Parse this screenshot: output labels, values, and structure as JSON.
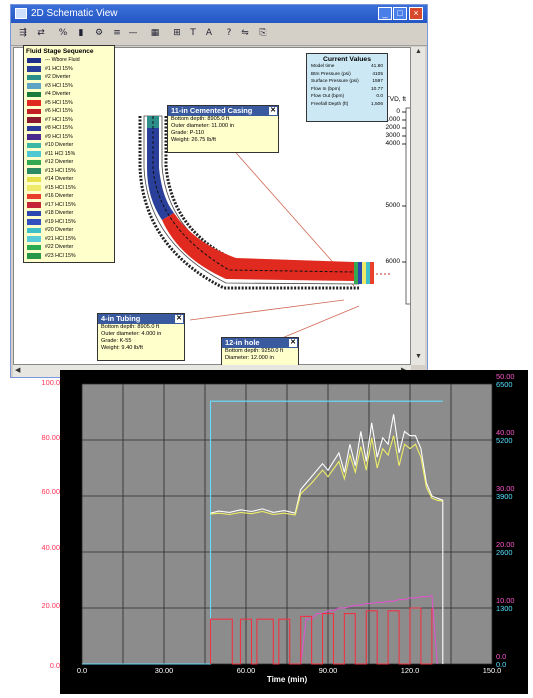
{
  "window": {
    "title": "2D Schematic View",
    "buttons": [
      "_",
      "□",
      "×"
    ]
  },
  "toolbar": {
    "tools": [
      "⇶",
      "⇄",
      "%",
      "▮",
      "⚙",
      "≡",
      "—",
      "▦",
      "⊞",
      "T",
      "A",
      "?",
      "⇋",
      "⎘"
    ]
  },
  "legend": {
    "title": "Fluid Stage Sequence",
    "items": [
      {
        "label": "--- Wbore Fluid",
        "color": "#1f2f8a"
      },
      {
        "label": "#1 HCl 15%",
        "color": "#2a3f9a"
      },
      {
        "label": "#2 Diverter",
        "color": "#2e8f8a"
      },
      {
        "label": "#3 HCl 15%",
        "color": "#5fa4c4"
      },
      {
        "label": "#4 Diverter",
        "color": "#1b7a3c"
      },
      {
        "label": "#5 HCl 15%",
        "color": "#e12a1f"
      },
      {
        "label": "#6 HCl 15%",
        "color": "#c31e24"
      },
      {
        "label": "#7 HCl 15%",
        "color": "#8b1a2e"
      },
      {
        "label": "#8 HCl 15%",
        "color": "#2b3c9c"
      },
      {
        "label": "#9 HCl 15%",
        "color": "#4b2a8e"
      },
      {
        "label": "#10 Diverter",
        "color": "#3ab8a4"
      },
      {
        "label": "#11 HCl 15%",
        "color": "#4fc8d4"
      },
      {
        "label": "#12 Diverter",
        "color": "#32a852"
      },
      {
        "label": "#13 HCl 15%",
        "color": "#2b8a64"
      },
      {
        "label": "#14 Diverter",
        "color": "#e8e04a"
      },
      {
        "label": "#15 HCl 15%",
        "color": "#f0ea6a"
      },
      {
        "label": "#16 Diverter",
        "color": "#e8402a"
      },
      {
        "label": "#17 HCl 15%",
        "color": "#c42838"
      },
      {
        "label": "#18 Diverter",
        "color": "#2a48b0"
      },
      {
        "label": "#19 HCl 15%",
        "color": "#3050c0"
      },
      {
        "label": "#20 Diverter",
        "color": "#3fc0c8"
      },
      {
        "label": "#21 HCl 15%",
        "color": "#58ccd8"
      },
      {
        "label": "#22 Diverter",
        "color": "#2eaa4e"
      },
      {
        "label": "#23 HCl 15%",
        "color": "#289848"
      }
    ]
  },
  "current_values": {
    "title": "Current Values",
    "rows": [
      {
        "name": "Model time",
        "value": "41.80"
      },
      {
        "name": "Btm Pressure (psi)",
        "value": "4105"
      },
      {
        "name": "Surface Pressure (psi)",
        "value": "1597"
      },
      {
        "name": "Flow In (bpm)",
        "value": "10.77"
      },
      {
        "name": "Flow Out (bpm)",
        "value": "0.0"
      },
      {
        "name": "Freefall Depth (ft)",
        "value": "1,506"
      }
    ]
  },
  "casing_box": {
    "title": "11-in Cemented Casing",
    "rows": [
      "Bottom depth:  8905.0 ft",
      "Outer diameter:  11.000 in",
      "Grade: P-110",
      "Weight:  26.75 lb/ft"
    ]
  },
  "tubing_box": {
    "title": "4-in Tubing",
    "rows": [
      "Bottom depth:  8905.0 ft",
      "Outer diameter:  4.000 in",
      "Grade: K-55",
      "Weight:  9.40 lb/ft"
    ]
  },
  "hole_box": {
    "title": "12-in hole",
    "rows": [
      "Bottom depth:  9250.0 ft",
      "Diameter:  12.000 in"
    ]
  },
  "tvd": {
    "label": "TVD, ft",
    "ticks": [
      "0",
      "1000",
      "2000",
      "3000",
      "4000",
      "5000",
      "6000"
    ]
  },
  "chart_data": {
    "type": "line",
    "xlabel": "Time (min)",
    "x_ticks": [
      "0.0",
      "30.00",
      "60.00",
      "90.00",
      "120.0",
      "150.0"
    ],
    "xlim": [
      0,
      150
    ],
    "left_axis_labels": [
      {
        "top": "100.0",
        "bottom": "6500",
        "top_color": "#ff3355",
        "bottom_color": "#ffffff"
      },
      {
        "top": "5200",
        "bottom": "80.00",
        "top_color": "#ffffff",
        "bottom_color": "#ff3355"
      },
      {
        "top": "5200",
        "bottom": "",
        "top_color": "#ffffff",
        "bottom_color": "#ffffff"
      },
      {
        "top": "3900",
        "bottom": "60.00",
        "top_color": "#ffffff",
        "bottom_color": "#ff3355"
      },
      {
        "top": "3900",
        "bottom": "",
        "top_color": "#ffffff",
        "bottom_color": "#ffffff"
      },
      {
        "top": "2600",
        "bottom": "40.00",
        "top_color": "#ffffff",
        "bottom_color": "#ff3355"
      },
      {
        "top": "2600",
        "bottom": "",
        "top_color": "#ffffff",
        "bottom_color": "#ffffff"
      },
      {
        "top": "1300",
        "bottom": "20.00",
        "top_color": "#ffffff",
        "bottom_color": "#ff3355"
      },
      {
        "top": "1300",
        "bottom": "",
        "top_color": "#ffffff",
        "bottom_color": "#ffffff"
      },
      {
        "top": "0.0",
        "bottom": "0.0",
        "top_color": "#ffffff",
        "bottom_color": "#ff3355"
      }
    ],
    "right_axis_labels": [
      {
        "value": "50.00",
        "color": "#ff55cc"
      },
      {
        "value": "6500",
        "color": "#55e0ff"
      },
      {
        "value": "40.00",
        "color": "#ff55cc"
      },
      {
        "value": "5200",
        "color": "#55e0ff"
      },
      {
        "value": "30.00",
        "color": "#ff55cc"
      },
      {
        "value": "3900",
        "color": "#55e0ff"
      },
      {
        "value": "20.00",
        "color": "#ff55cc"
      },
      {
        "value": "2600",
        "color": "#55e0ff"
      },
      {
        "value": "10.00",
        "color": "#ff55cc"
      },
      {
        "value": "1300",
        "color": "#55e0ff"
      },
      {
        "value": "0.0",
        "color": "#ff55cc"
      },
      {
        "value": "0.0",
        "color": "#55e0ff"
      }
    ],
    "series": [
      {
        "color": "#66ddff",
        "x": [
          0,
          47,
          47,
          132
        ],
        "y": [
          0,
          0,
          6100,
          6100
        ]
      },
      {
        "color": "#ffffff",
        "x": [
          47,
          50,
          54,
          58,
          62,
          66,
          70,
          74,
          78,
          80,
          84,
          88,
          90,
          94,
          96,
          98,
          100,
          102,
          104,
          106,
          108,
          110,
          112,
          114,
          116,
          118,
          120,
          122,
          124,
          126,
          128,
          130,
          132,
          132
        ],
        "y": [
          3500,
          3550,
          3520,
          3580,
          3540,
          3600,
          3520,
          3560,
          3500,
          4050,
          4350,
          4650,
          4500,
          4900,
          4450,
          5100,
          4600,
          5400,
          4700,
          5600,
          4800,
          5250,
          5100,
          5800,
          4900,
          5400,
          5300,
          5300,
          5000,
          4200,
          3900,
          3850,
          3800,
          0
        ]
      },
      {
        "color": "#eeee66",
        "x": [
          47,
          50,
          54,
          58,
          62,
          66,
          70,
          74,
          78,
          80,
          84,
          88,
          90,
          94,
          96,
          98,
          100,
          102,
          104,
          106,
          108,
          110,
          112,
          114,
          116,
          118,
          120,
          122,
          124,
          126,
          128,
          130,
          132
        ],
        "y": [
          3480,
          3500,
          3470,
          3520,
          3490,
          3540,
          3470,
          3500,
          3460,
          3950,
          4200,
          4500,
          4350,
          4700,
          4300,
          4850,
          4450,
          5050,
          4500,
          5250,
          4550,
          5000,
          4850,
          5300,
          4600,
          5100,
          5000,
          5100,
          4800,
          4100,
          3850,
          3800,
          3780
        ]
      },
      {
        "color": "#dd55cc",
        "x": [
          80,
          82,
          84,
          86,
          88,
          90,
          92,
          94,
          96,
          98,
          100,
          102,
          104,
          106,
          108,
          110,
          112,
          114,
          116,
          118,
          120,
          122,
          124,
          126,
          128,
          130
        ],
        "y": [
          0,
          8,
          8,
          9,
          9,
          9.5,
          9.5,
          10,
          10,
          10.2,
          10.5,
          10.5,
          10.8,
          10.8,
          11,
          11,
          11.2,
          11.2,
          11.5,
          11.5,
          11.8,
          11.8,
          12,
          12,
          12.2,
          0
        ]
      },
      {
        "color": "#ee3344",
        "x": [
          47,
          47,
          55,
          55,
          58,
          58,
          62,
          62,
          64,
          64,
          70,
          70,
          72,
          72,
          76,
          76,
          80,
          80,
          84,
          84,
          88,
          88,
          92,
          92,
          96,
          96,
          100,
          100,
          104,
          104,
          108,
          108,
          112,
          112,
          116,
          116,
          120,
          120,
          124,
          124,
          128,
          128
        ],
        "y": [
          0,
          8,
          8,
          0,
          0,
          8,
          8,
          0,
          0,
          8,
          8,
          0,
          0,
          8,
          8,
          0,
          0,
          8.5,
          8.5,
          0,
          0,
          9,
          9,
          0,
          0,
          9,
          9,
          0,
          0,
          9.5,
          9.5,
          0,
          0,
          9.5,
          9.5,
          0,
          0,
          10,
          10,
          0,
          0,
          10
        ]
      }
    ]
  }
}
